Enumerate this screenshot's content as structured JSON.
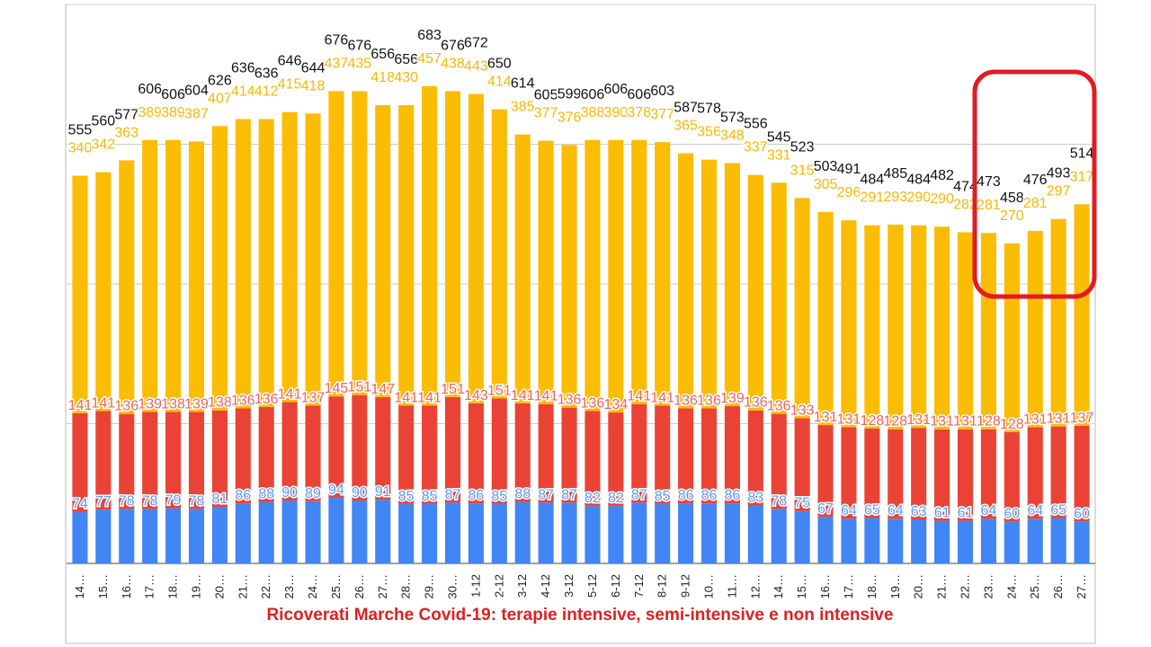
{
  "chart_data": {
    "type": "bar",
    "stacked": true,
    "title": "Ricoverati Marche Covid-19: terapie intensive, semi-intensive e non intensive",
    "categories": [
      "14…",
      "15…",
      "16…",
      "17…",
      "18…",
      "19…",
      "20…",
      "21…",
      "22…",
      "23…",
      "24…",
      "25…",
      "26…",
      "27…",
      "28…",
      "29…",
      "30…",
      "1-12",
      "2-12",
      "3-12",
      "4-12",
      "3-12",
      "5-12",
      "6-12",
      "7-12",
      "8-12",
      "9-12",
      "10…",
      "11…",
      "12…",
      "14…",
      "15…",
      "16…",
      "17…",
      "18…",
      "19…",
      "20…",
      "21…",
      "22…",
      "23…",
      "24…",
      "25…",
      "26…",
      "27…"
    ],
    "series": [
      {
        "color": "#4285f4",
        "label_color": "#5b9bf5",
        "values": [
          74,
          77,
          78,
          78,
          79,
          78,
          81,
          86,
          88,
          90,
          89,
          94,
          90,
          91,
          85,
          85,
          87,
          86,
          85,
          88,
          87,
          87,
          82,
          82,
          87,
          85,
          86,
          86,
          86,
          83,
          78,
          75,
          67,
          64,
          65,
          64,
          63,
          61,
          61,
          64,
          60,
          64,
          65,
          60
        ]
      },
      {
        "color": "#ea4335",
        "label_color": "#f0625a",
        "values": [
          141,
          141,
          136,
          139,
          138,
          139,
          138,
          136,
          136,
          141,
          137,
          145,
          151,
          147,
          141,
          141,
          151,
          143,
          151,
          141,
          141,
          136,
          136,
          134,
          141,
          141,
          136,
          136,
          139,
          136,
          136,
          133,
          131,
          131,
          128,
          128,
          131,
          131,
          131,
          128,
          128,
          131,
          131,
          137
        ]
      },
      {
        "color": "#fbbc04",
        "label_color": "#f5b800",
        "values": [
          340,
          342,
          363,
          389,
          389,
          387,
          407,
          414,
          412,
          415,
          418,
          437,
          435,
          418,
          430,
          457,
          438,
          443,
          414,
          385,
          377,
          376,
          388,
          390,
          378,
          377,
          365,
          356,
          348,
          337,
          331,
          315,
          305,
          296,
          291,
          293,
          290,
          290,
          282,
          281,
          270,
          281,
          297,
          317
        ]
      }
    ],
    "totals": [
      555,
      560,
      577,
      606,
      606,
      604,
      626,
      636,
      636,
      646,
      644,
      676,
      676,
      656,
      656,
      683,
      676,
      672,
      650,
      614,
      605,
      599,
      606,
      606,
      606,
      603,
      587,
      578,
      573,
      556,
      545,
      523,
      503,
      491,
      484,
      485,
      484,
      482,
      474,
      473,
      458,
      476,
      493,
      514
    ],
    "ylim": [
      0,
      800
    ],
    "yticks": [
      0,
      200,
      400,
      600,
      800
    ],
    "grid": true
  }
}
